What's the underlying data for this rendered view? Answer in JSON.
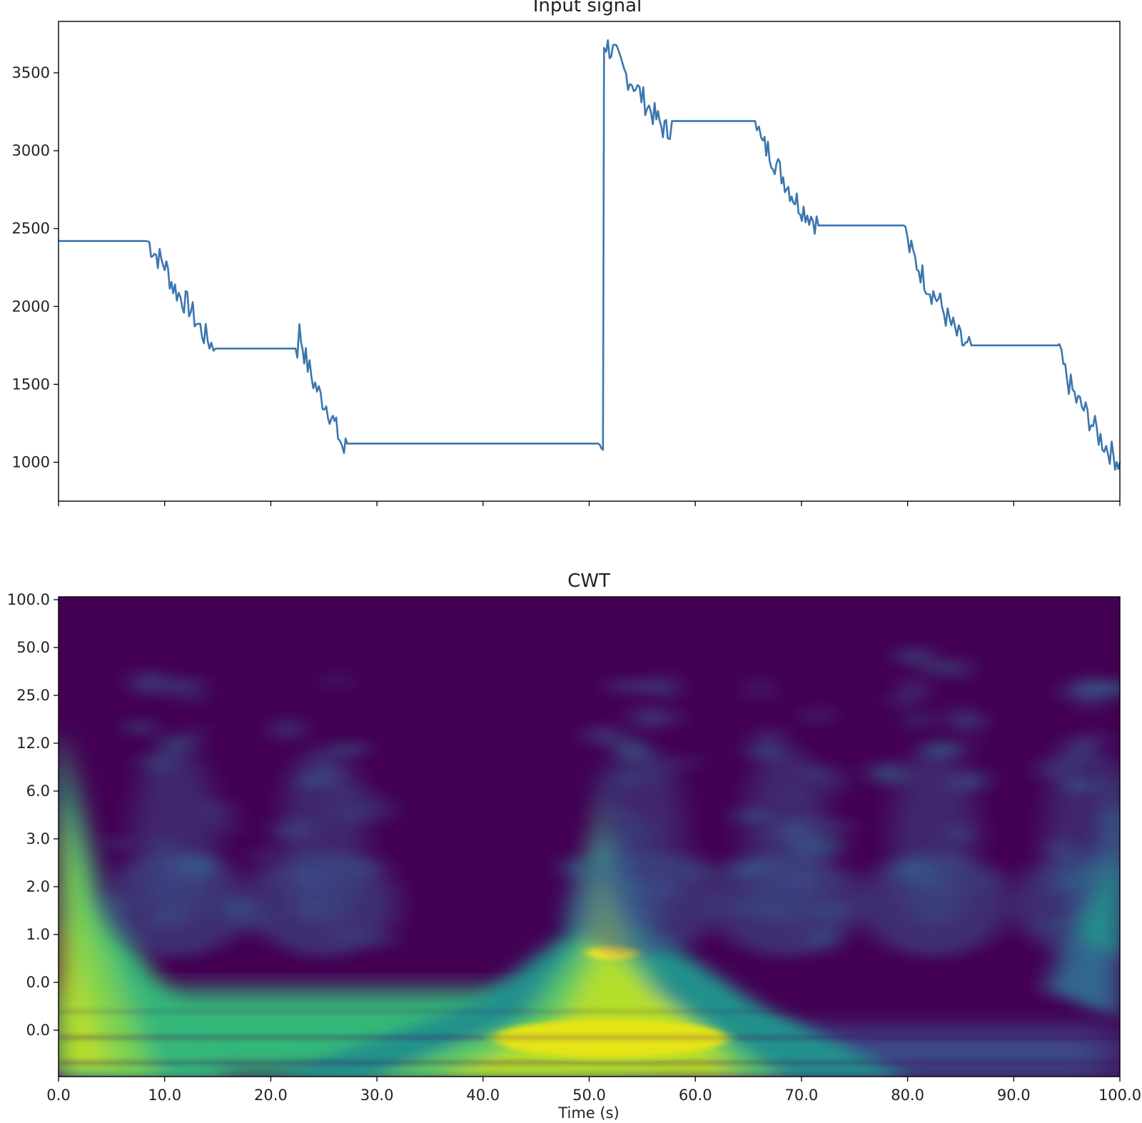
{
  "chart_data": [
    {
      "type": "line",
      "title": "Input signal",
      "xlim": [
        0,
        100
      ],
      "ylim": [
        750,
        3830
      ],
      "yticks": [
        1000,
        1500,
        2000,
        2500,
        3000,
        3500
      ],
      "ytick_labels": [
        "1000",
        "1500",
        "2000",
        "2500",
        "3000",
        "3500"
      ],
      "xticks": [
        0,
        10,
        20,
        30,
        40,
        50,
        60,
        70,
        80,
        90,
        100
      ],
      "show_xtick_labels": false,
      "grid": false,
      "series": [
        {
          "color": "#3b76af",
          "x": [
            0,
            0.3,
            8.4,
            9.2,
            10.0,
            10.8,
            11.5,
            12.3,
            13.0,
            13.7,
            14.4,
            14.8,
            22.5,
            22.7,
            23.3,
            24.0,
            24.7,
            25.4,
            26.0,
            26.5,
            26.9,
            27.2,
            51.0,
            51.3,
            51.4,
            51.6,
            52.4,
            53.3,
            54.2,
            55.1,
            56.0,
            56.8,
            57.4,
            57.8,
            65.8,
            66.2,
            67.0,
            67.8,
            68.6,
            69.4,
            70.2,
            70.9,
            71.6,
            72.0,
            79.8,
            80.0,
            80.7,
            81.4,
            82.1,
            82.9,
            83.6,
            84.3,
            85.0,
            85.6,
            86.0,
            94.3,
            94.5,
            95.2,
            95.9,
            96.6,
            97.3,
            98.0,
            98.7,
            99.4,
            100.0
          ],
          "y": [
            2420,
            2420,
            2420,
            2330,
            2270,
            2130,
            2060,
            2000,
            1900,
            1820,
            1760,
            1730,
            1730,
            1840,
            1660,
            1520,
            1420,
            1350,
            1240,
            1150,
            1070,
            1120,
            1120,
            1080,
            3700,
            3680,
            3620,
            3500,
            3430,
            3330,
            3240,
            3160,
            3120,
            3190,
            3190,
            3050,
            2990,
            2890,
            2790,
            2690,
            2620,
            2580,
            2520,
            2520,
            2520,
            2400,
            2300,
            2200,
            2110,
            2040,
            1940,
            1860,
            1780,
            1720,
            1750,
            1750,
            1640,
            1510,
            1400,
            1340,
            1260,
            1170,
            1100,
            1040,
            1000
          ]
        }
      ]
    },
    {
      "type": "heatmap",
      "title": "CWT",
      "xlabel": "Time (s)",
      "xlim": [
        0,
        100
      ],
      "xticks": [
        0,
        10,
        20,
        30,
        40,
        50,
        60,
        70,
        80,
        90,
        100
      ],
      "xtick_labels": [
        "0.0",
        "10.0",
        "20.0",
        "30.0",
        "40.0",
        "50.0",
        "60.0",
        "70.0",
        "80.0",
        "90.0",
        "100.0"
      ],
      "ytick_labels": [
        "100.0",
        "50.0",
        "25.0",
        "12.0",
        "6.0",
        "3.0",
        "2.0",
        "1.0",
        "0.0",
        "0.0"
      ],
      "colormap": "viridis",
      "colormap_colors": [
        "#440154",
        "#3b528b",
        "#21918c",
        "#5ec962",
        "#fde725"
      ],
      "grid": false
    }
  ]
}
